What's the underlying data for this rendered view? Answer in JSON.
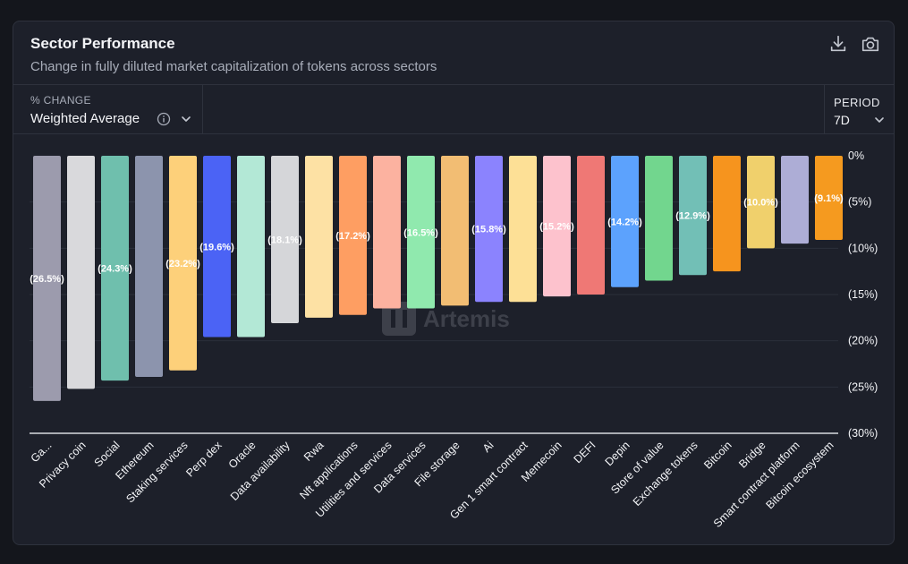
{
  "header": {
    "title": "Sector Performance",
    "subtitle": "Change in fully diluted market capitalization of tokens across sectors"
  },
  "controls": {
    "metric_label": "% CHANGE",
    "metric_value": "Weighted Average",
    "period_label": "PERIOD",
    "period_value": "7D"
  },
  "icons": {
    "download": "download-icon",
    "screenshot": "camera-icon",
    "info": "info-icon",
    "chevron": "chevron-down-icon"
  },
  "watermark": "Artemis",
  "chart_data": {
    "type": "bar",
    "title": "Sector Performance",
    "categories": [
      "Ga...",
      "Privacy coin",
      "Social",
      "Ethereum",
      "Staking services",
      "Perp dex",
      "Oracle",
      "Data availability",
      "Rwa",
      "Nft applications",
      "Utilities and services",
      "Data services",
      "File storage",
      "Ai",
      "Gen 1 smart contract",
      "Memecoin",
      "DEFI",
      "Depin",
      "Store of value",
      "Exchange tokens",
      "Bitcoin",
      "Bridge",
      "Smart contract platform",
      "Bitcoin ecosystem"
    ],
    "values": [
      -26.5,
      -25.2,
      -24.3,
      -23.9,
      -23.2,
      -19.6,
      -19.6,
      -18.1,
      -17.5,
      -17.2,
      -16.5,
      -16.5,
      -16.2,
      -15.8,
      -15.8,
      -15.2,
      -15.0,
      -14.2,
      -13.5,
      -12.9,
      -12.5,
      -10.0,
      -9.5,
      -9.1
    ],
    "data_labels": [
      "(26.5%)",
      "",
      "(24.3%)",
      "",
      "(23.2%)",
      "(19.6%)",
      "",
      "(18.1%)",
      "",
      "(17.2%)",
      "",
      "(16.5%)",
      "",
      "(15.8%)",
      "",
      "(15.2%)",
      "",
      "(14.2%)",
      "",
      "(12.9%)",
      "",
      "(10.0%)",
      "",
      "(9.1%)"
    ],
    "colors": [
      "#9c9bad",
      "#d9d9dc",
      "#6fbfad",
      "#8c94ad",
      "#fdd07a",
      "#4b63f5",
      "#b3e8d6",
      "#d5d6d9",
      "#fde1a4",
      "#fe9e62",
      "#fcb2a0",
      "#90e9ae",
      "#f2bd73",
      "#8b83fe",
      "#fde096",
      "#fdc2cd",
      "#ef7875",
      "#5ca2fd",
      "#72d68e",
      "#72bfb6",
      "#f6941e",
      "#f0d06c",
      "#adadd6",
      "#f59a1f"
    ],
    "ylim": [
      -30,
      0
    ],
    "yticks": [
      0,
      -5,
      -10,
      -15,
      -20,
      -25,
      -30
    ],
    "ytick_labels": [
      "0%",
      "(5%)",
      "(10%)",
      "(15%)",
      "(20%)",
      "(25%)",
      "(30%)"
    ],
    "xlabel": "",
    "ylabel": "",
    "grid": true
  }
}
